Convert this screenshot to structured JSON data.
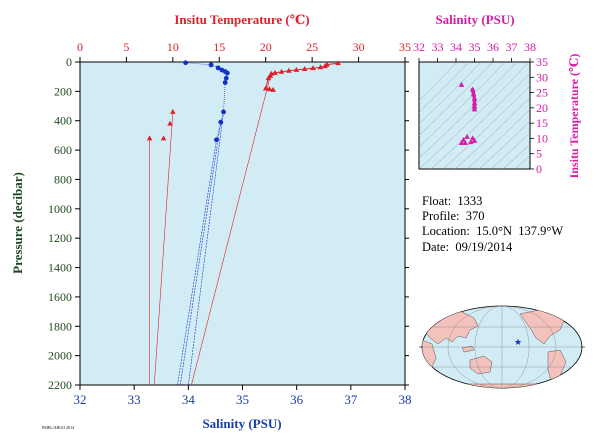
{
  "chart_data": [
    {
      "type": "scatter",
      "subtype": "profile",
      "top_axis": {
        "label": "Insitu Temperature (℃)",
        "range": [
          0,
          35
        ],
        "ticks": [
          0,
          5,
          10,
          15,
          20,
          25,
          30,
          35
        ],
        "color": "#e0202a"
      },
      "bottom_axis": {
        "label": "Salinity (PSU)",
        "range": [
          32,
          38
        ],
        "ticks": [
          32,
          33,
          34,
          35,
          36,
          37,
          38
        ],
        "color": "#1a3ea8"
      },
      "left_axis": {
        "label": "Pressure (decibar)",
        "range": [
          0,
          2200
        ],
        "inverted": true,
        "ticks": [
          0,
          200,
          400,
          600,
          800,
          1000,
          1200,
          1400,
          1600,
          1800,
          2000,
          2200
        ],
        "color": "#204a20"
      },
      "series": [
        {
          "color": "#e0202a",
          "marker": "triangle",
          "axis": "top",
          "points": [
            [
              27.8,
              8
            ],
            [
              26.6,
              18
            ],
            [
              26.4,
              28
            ],
            [
              25.9,
              36
            ],
            [
              25.1,
              42
            ],
            [
              24.2,
              48
            ],
            [
              23.3,
              54
            ],
            [
              22.5,
              60
            ],
            [
              21.7,
              66
            ],
            [
              21.0,
              74
            ],
            [
              20.6,
              80
            ],
            [
              20.5,
              95
            ],
            [
              20.3,
              110
            ],
            [
              20.0,
              180
            ],
            [
              20.4,
              185
            ],
            [
              20.8,
              190
            ],
            [
              10.0,
              340
            ],
            [
              9.7,
              420
            ],
            [
              9.0,
              520
            ],
            [
              7.5,
              520
            ]
          ]
        },
        {
          "color": "#1030c8",
          "marker": "circle",
          "axis": "bottom",
          "points": [
            [
              33.95,
              5
            ],
            [
              34.42,
              20
            ],
            [
              34.55,
              40
            ],
            [
              34.62,
              55
            ],
            [
              34.68,
              65
            ],
            [
              34.72,
              75
            ],
            [
              34.7,
              110
            ],
            [
              34.68,
              140
            ],
            [
              34.65,
              340
            ],
            [
              34.6,
              410
            ],
            [
              34.52,
              530
            ]
          ]
        }
      ],
      "tail_to": {
        "pressure": 2200,
        "temperature": [
          7.5,
          8.0,
          12.0
        ],
        "salinity": [
          33.8,
          33.85,
          34.0
        ]
      }
    },
    {
      "type": "scatter",
      "subtype": "t-s diagram",
      "top_axis": {
        "label": "Salinity (PSU)",
        "range": [
          32,
          38
        ],
        "ticks": [
          32,
          33,
          34,
          35,
          36,
          37,
          38
        ],
        "color": "#d61ca8"
      },
      "right_axis": {
        "label": "Insitu Temperature (℃)",
        "range": [
          0,
          35
        ],
        "ticks": [
          0,
          5,
          10,
          15,
          20,
          25,
          30,
          35
        ],
        "color": "#d61ca8"
      },
      "points": [
        [
          34.3,
          27.5
        ],
        [
          34.9,
          26.0
        ],
        [
          34.95,
          24.5
        ],
        [
          35.0,
          23.0
        ],
        [
          35.0,
          21.5
        ],
        [
          35.0,
          20.5
        ],
        [
          35.0,
          19.5
        ],
        [
          34.6,
          10.5
        ],
        [
          34.4,
          9.5
        ],
        [
          34.5,
          8.5
        ],
        [
          34.3,
          8.5
        ],
        [
          34.9,
          10.0
        ],
        [
          34.8,
          8.8
        ],
        [
          35.0,
          9.2
        ]
      ],
      "color": "#d61ca8"
    }
  ],
  "info": {
    "float": "Float:  1333",
    "profile": "Profile:  370",
    "location": "Location:  15.0°N  137.9°W",
    "date": "Date:  09/19/2014"
  },
  "footer_tag": "PMEL/ARGO 2014",
  "map": {
    "marker_color": "#1030c8",
    "ocean_color": "#d2ecf6",
    "land_color": "#f4c2bc"
  }
}
